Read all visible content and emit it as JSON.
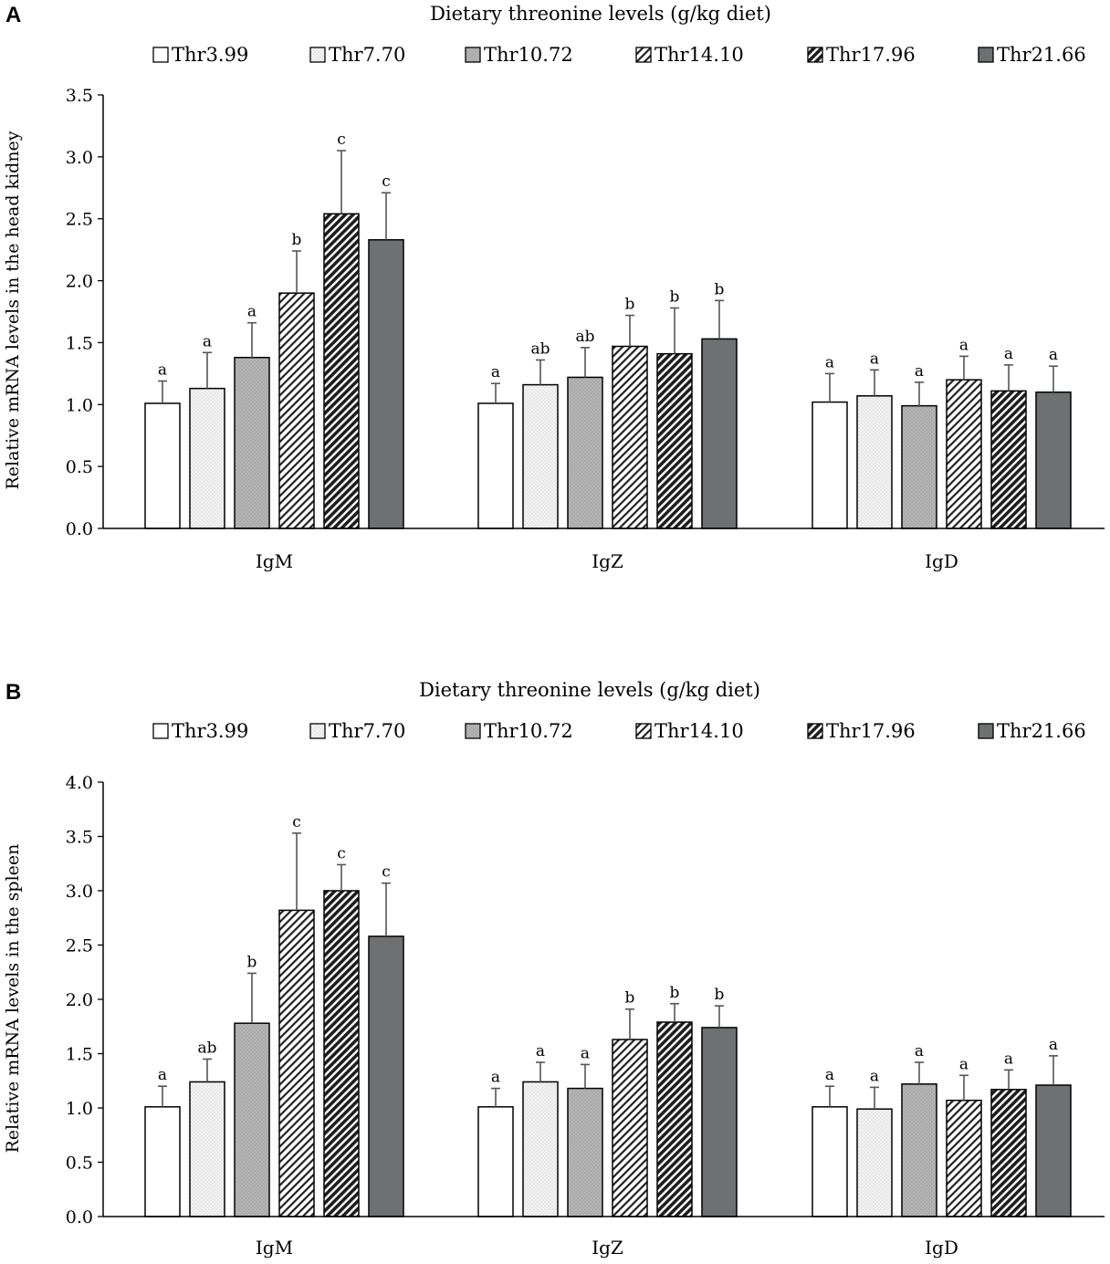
{
  "styles": [
    {
      "fill": "#ffffff",
      "pattern": "none"
    },
    {
      "fill": "#f0f0f0",
      "pattern": "dots"
    },
    {
      "fill": "#b3b3b3",
      "pattern": "dots"
    },
    {
      "fill": "#ffffff",
      "pattern": "hatch-light"
    },
    {
      "fill": "#555555",
      "pattern": "hatch-dark"
    },
    {
      "fill": "#6e7072",
      "pattern": "none"
    }
  ],
  "chart_data": [
    {
      "panel": "A",
      "type": "bar",
      "title": "Dietary threonine levels (g/kg diet)",
      "ylabel": "Relative mRNA levels in the head kidney",
      "ylim": [
        0,
        3.5
      ],
      "yticks": [
        "0.0",
        "0.5",
        "1.0",
        "1.5",
        "2.0",
        "2.5",
        "3.0",
        "3.5"
      ],
      "categories": [
        "IgM",
        "IgZ",
        "IgD"
      ],
      "series": [
        {
          "name": "Thr3.99",
          "values": [
            1.01,
            1.01,
            1.02
          ],
          "errors": [
            0.18,
            0.16,
            0.23
          ],
          "labels": [
            "a",
            "a",
            "a"
          ]
        },
        {
          "name": "Thr7.70",
          "values": [
            1.13,
            1.16,
            1.07
          ],
          "errors": [
            0.29,
            0.2,
            0.21
          ],
          "labels": [
            "a",
            "ab",
            "a"
          ]
        },
        {
          "name": "Thr10.72",
          "values": [
            1.38,
            1.22,
            0.99
          ],
          "errors": [
            0.28,
            0.24,
            0.19
          ],
          "labels": [
            "a",
            "ab",
            "a"
          ]
        },
        {
          "name": "Thr14.10",
          "values": [
            1.9,
            1.47,
            1.2
          ],
          "errors": [
            0.34,
            0.25,
            0.19
          ],
          "labels": [
            "b",
            "b",
            "a"
          ]
        },
        {
          "name": "Thr17.96",
          "values": [
            2.54,
            1.41,
            1.11
          ],
          "errors": [
            0.51,
            0.37,
            0.21
          ],
          "labels": [
            "c",
            "b",
            "a"
          ]
        },
        {
          "name": "Thr21.66",
          "values": [
            2.33,
            1.53,
            1.1
          ],
          "errors": [
            0.38,
            0.31,
            0.21
          ],
          "labels": [
            "c",
            "b",
            "a"
          ]
        }
      ]
    },
    {
      "panel": "B",
      "type": "bar",
      "title": "Dietary threonine levels (g/kg diet)",
      "ylabel": "Relative mRNA levels in the spleen",
      "ylim": [
        0,
        4.0
      ],
      "yticks": [
        "0.0",
        "0.5",
        "1.0",
        "1.5",
        "2.0",
        "2.5",
        "3.0",
        "3.5",
        "4.0"
      ],
      "categories": [
        "IgM",
        "IgZ",
        "IgD"
      ],
      "series": [
        {
          "name": "Thr3.99",
          "values": [
            1.01,
            1.01,
            1.01
          ],
          "errors": [
            0.19,
            0.17,
            0.19
          ],
          "labels": [
            "a",
            "a",
            "a"
          ]
        },
        {
          "name": "Thr7.70",
          "values": [
            1.24,
            1.24,
            0.99
          ],
          "errors": [
            0.21,
            0.18,
            0.2
          ],
          "labels": [
            "ab",
            "a",
            "a"
          ]
        },
        {
          "name": "Thr10.72",
          "values": [
            1.78,
            1.18,
            1.22
          ],
          "errors": [
            0.46,
            0.22,
            0.2
          ],
          "labels": [
            "b",
            "a",
            "a"
          ]
        },
        {
          "name": "Thr14.10",
          "values": [
            2.82,
            1.63,
            1.07
          ],
          "errors": [
            0.71,
            0.28,
            0.23
          ],
          "labels": [
            "c",
            "b",
            "a"
          ]
        },
        {
          "name": "Thr17.96",
          "values": [
            3.0,
            1.79,
            1.17
          ],
          "errors": [
            0.24,
            0.17,
            0.18
          ],
          "labels": [
            "c",
            "b",
            "a"
          ]
        },
        {
          "name": "Thr21.66",
          "values": [
            2.58,
            1.74,
            1.21
          ],
          "errors": [
            0.49,
            0.2,
            0.27
          ],
          "labels": [
            "c",
            "b",
            "a"
          ]
        }
      ]
    }
  ]
}
